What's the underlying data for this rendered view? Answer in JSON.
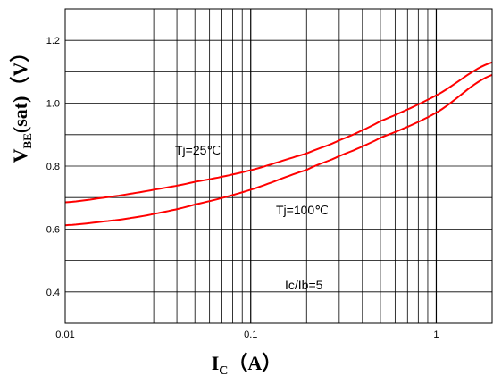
{
  "chart_data": {
    "type": "line",
    "x_scale": "log",
    "x_ticks": [
      0.01,
      0.1,
      1
    ],
    "x_tick_labels": [
      "0.01",
      "0.1",
      "1"
    ],
    "xlim": [
      0.01,
      2
    ],
    "ylim": [
      0.3,
      1.3
    ],
    "y_ticks": [
      0.4,
      0.6,
      0.8,
      1.0,
      1.2
    ],
    "y_tick_labels": [
      "0.4",
      "0.6",
      "0.8",
      "1.0",
      "1.2"
    ],
    "xlabel": {
      "main": "I",
      "sub": "C",
      "unit": "（A）"
    },
    "ylabel": {
      "main": "V",
      "sub": "BE",
      "unit": "(sat)（V）"
    },
    "grid": true,
    "series": [
      {
        "name": "Tj=25℃",
        "color": "#ff0000",
        "x": [
          0.01,
          0.02,
          0.03,
          0.05,
          0.1,
          0.2,
          0.3,
          0.5,
          1,
          2
        ],
        "y": [
          0.685,
          0.707,
          0.725,
          0.75,
          0.787,
          0.84,
          0.882,
          0.943,
          1.025,
          1.13
        ]
      },
      {
        "name": "Tj=100℃",
        "color": "#ff0000",
        "x": [
          0.01,
          0.02,
          0.03,
          0.05,
          0.1,
          0.2,
          0.3,
          0.5,
          1,
          2
        ],
        "y": [
          0.612,
          0.63,
          0.648,
          0.678,
          0.725,
          0.788,
          0.832,
          0.89,
          0.97,
          1.09
        ]
      }
    ],
    "annotations": [
      "Tj=25℃",
      "Tj=100℃",
      "Ic/Ib=5"
    ]
  }
}
